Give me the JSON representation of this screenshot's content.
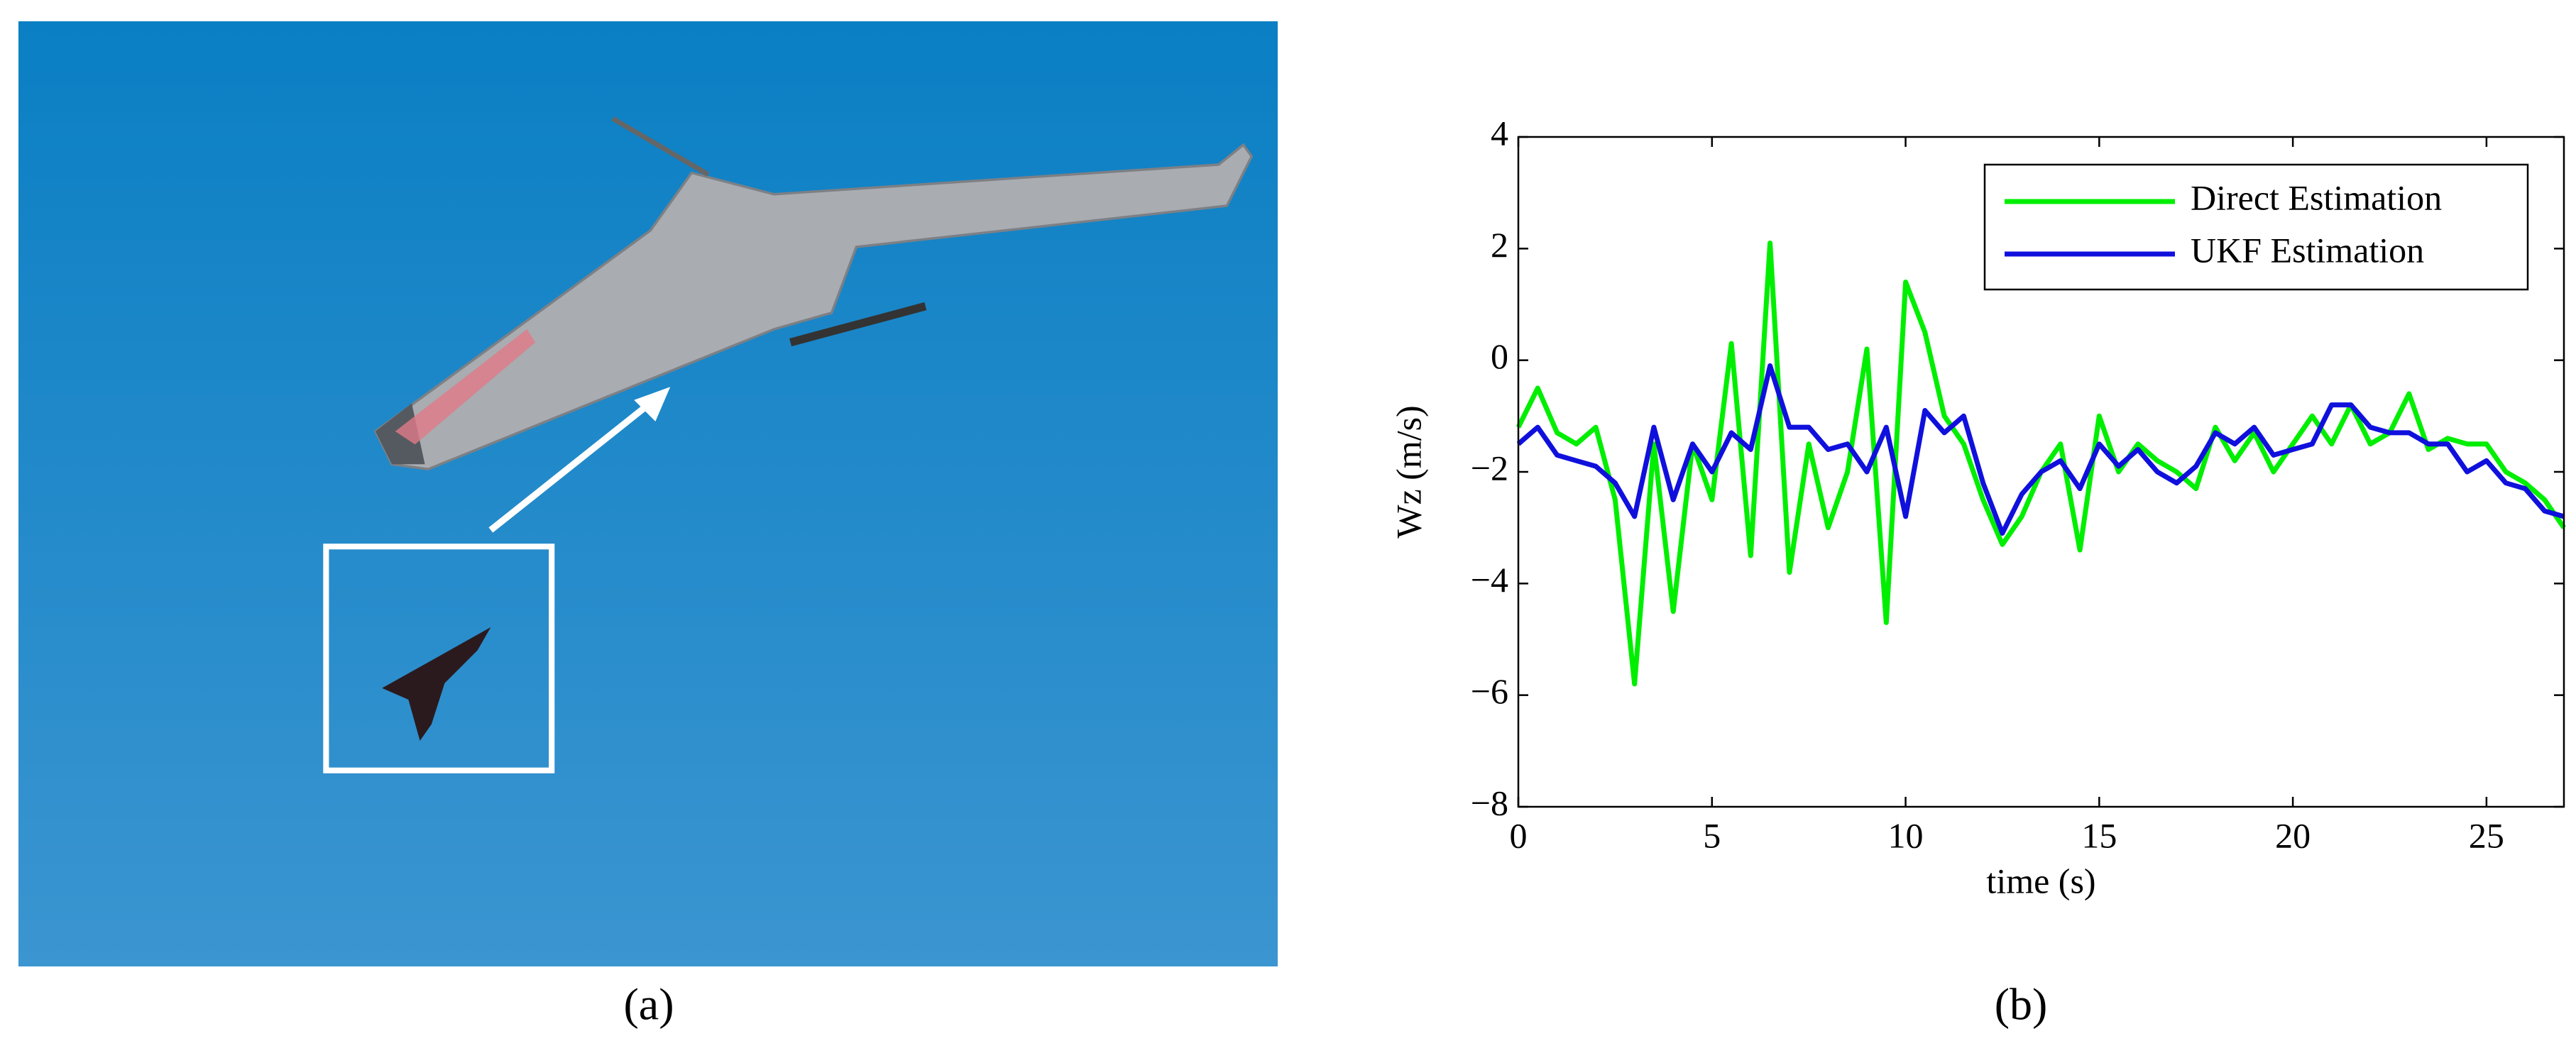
{
  "figure": {
    "labels": [
      "(a)",
      "(b)"
    ]
  },
  "chart_data": {
    "type": "line",
    "xlabel": "time (s)",
    "ylabel": "Wz (m/s)",
    "x": [
      0,
      0.5,
      1,
      1.5,
      2,
      2.5,
      3,
      3.5,
      4,
      4.5,
      5,
      5.5,
      6,
      6.5,
      7,
      7.5,
      8,
      8.5,
      9,
      9.5,
      10,
      10.5,
      11,
      11.5,
      12,
      12.5,
      13,
      13.5,
      14,
      14.5,
      15,
      15.5,
      16,
      16.5,
      17,
      17.5,
      18,
      18.5,
      19,
      19.5,
      20,
      20.5,
      21,
      21.5,
      22,
      22.5,
      23,
      23.5,
      24,
      24.5,
      25,
      25.5,
      26,
      26.5,
      27
    ],
    "series": [
      {
        "name": "Direct Estimation",
        "color": "#00ee00",
        "values": [
          -1.2,
          -0.5,
          -1.3,
          -1.5,
          -1.2,
          -2.5,
          -5.8,
          -1.5,
          -4.5,
          -1.5,
          -2.5,
          0.3,
          -3.5,
          2.1,
          -3.8,
          -1.5,
          -3.0,
          -2.0,
          0.2,
          -4.7,
          1.4,
          0.5,
          -1.0,
          -1.5,
          -2.5,
          -3.3,
          -2.8,
          -2.0,
          -1.5,
          -3.4,
          -1.0,
          -2.0,
          -1.5,
          -1.8,
          -2.0,
          -2.3,
          -1.2,
          -1.8,
          -1.3,
          -2.0,
          -1.5,
          -1.0,
          -1.5,
          -0.8,
          -1.5,
          -1.3,
          -0.6,
          -1.6,
          -1.4,
          -1.5,
          -1.5,
          -2.0,
          -2.2,
          -2.5,
          -3.0
        ]
      },
      {
        "name": "UKF Estimation",
        "color": "#1010dd",
        "values": [
          -1.5,
          -1.2,
          -1.7,
          -1.8,
          -1.9,
          -2.2,
          -2.8,
          -1.2,
          -2.5,
          -1.5,
          -2.0,
          -1.3,
          -1.6,
          -0.1,
          -1.2,
          -1.2,
          -1.6,
          -1.5,
          -2.0,
          -1.2,
          -2.8,
          -0.9,
          -1.3,
          -1.0,
          -2.2,
          -3.1,
          -2.4,
          -2.0,
          -1.8,
          -2.3,
          -1.5,
          -1.9,
          -1.6,
          -2.0,
          -2.2,
          -1.9,
          -1.3,
          -1.5,
          -1.2,
          -1.7,
          -1.6,
          -1.5,
          -0.8,
          -0.8,
          -1.2,
          -1.3,
          -1.3,
          -1.5,
          -1.5,
          -2.0,
          -1.8,
          -2.2,
          -2.3,
          -2.7,
          -2.8
        ]
      }
    ],
    "xlim": [
      0,
      27
    ],
    "xticks": [
      0,
      5,
      10,
      15,
      20,
      25
    ],
    "ylim": [
      -8,
      4
    ],
    "yticks": [
      {
        "value": -8,
        "label": "−8"
      },
      {
        "value": -6,
        "label": "−6"
      },
      {
        "value": -4,
        "label": "−4"
      },
      {
        "value": -2,
        "label": "−2"
      },
      0,
      2,
      4
    ],
    "legend": "upper right",
    "grid": false
  }
}
